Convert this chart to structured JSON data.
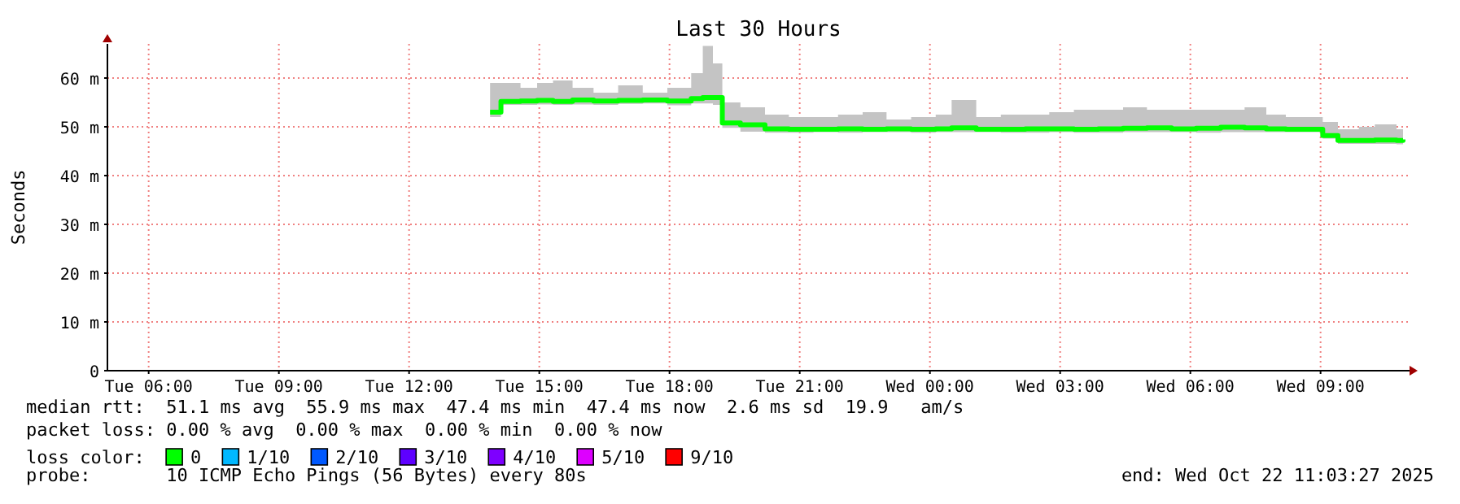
{
  "chart_data": {
    "type": "step",
    "title": "Last 30 Hours",
    "ylabel": "Seconds",
    "legend_title": "loss color:",
    "legend": "bottom",
    "grid": true,
    "xlim": [
      "2025-10-21T05:03",
      "2025-10-22T11:03"
    ],
    "xticks": [
      {
        "value": "2025-10-21T06:00",
        "label": "Tue 06:00"
      },
      {
        "value": "2025-10-21T09:00",
        "label": "Tue 09:00"
      },
      {
        "value": "2025-10-21T12:00",
        "label": "Tue 12:00"
      },
      {
        "value": "2025-10-21T15:00",
        "label": "Tue 15:00"
      },
      {
        "value": "2025-10-21T18:00",
        "label": "Tue 18:00"
      },
      {
        "value": "2025-10-21T21:00",
        "label": "Tue 21:00"
      },
      {
        "value": "2025-10-22T00:00",
        "label": "Wed 00:00"
      },
      {
        "value": "2025-10-22T03:00",
        "label": "Wed 03:00"
      },
      {
        "value": "2025-10-22T06:00",
        "label": "Wed 06:00"
      },
      {
        "value": "2025-10-22T09:00",
        "label": "Wed 09:00"
      }
    ],
    "ylim": [
      0,
      67
    ],
    "yticks": [
      0,
      {
        "value": 10,
        "label": "10 m"
      },
      {
        "value": 20,
        "label": "20 m"
      },
      {
        "value": 30,
        "label": "30 m"
      },
      {
        "value": 40,
        "label": "40 m"
      },
      {
        "value": 50,
        "label": "50 m"
      },
      {
        "value": 60,
        "label": "60 m"
      }
    ],
    "x": [
      "2025-10-21T13:52",
      "2025-10-21T14:07",
      "2025-10-21T14:34",
      "2025-10-21T14:57",
      "2025-10-21T15:19",
      "2025-10-21T15:46",
      "2025-10-21T16:15",
      "2025-10-21T16:49",
      "2025-10-21T17:23",
      "2025-10-21T17:57",
      "2025-10-21T18:30",
      "2025-10-21T18:46",
      "2025-10-21T19:00",
      "2025-10-21T19:13",
      "2025-10-21T19:38",
      "2025-10-21T20:12",
      "2025-10-21T20:45",
      "2025-10-21T21:19",
      "2025-10-21T21:53",
      "2025-10-21T22:27",
      "2025-10-21T23:00",
      "2025-10-21T23:34",
      "2025-10-22T00:08",
      "2025-10-22T00:30",
      "2025-10-22T01:04",
      "2025-10-22T01:38",
      "2025-10-22T02:12",
      "2025-10-22T02:45",
      "2025-10-22T03:19",
      "2025-10-22T03:53",
      "2025-10-22T04:27",
      "2025-10-22T05:00",
      "2025-10-22T05:34",
      "2025-10-22T06:08",
      "2025-10-22T06:42",
      "2025-10-22T07:15",
      "2025-10-22T07:45",
      "2025-10-22T08:12",
      "2025-10-22T08:43",
      "2025-10-22T09:03",
      "2025-10-22T09:24",
      "2025-10-22T09:53",
      "2025-10-22T10:15",
      "2025-10-22T10:45",
      "2025-10-22T10:54"
    ],
    "series": [
      {
        "name": "0",
        "color": "#00ff00",
        "values": [
          53,
          55.2,
          55.3,
          55.4,
          55.2,
          55.5,
          55.3,
          55.4,
          55.5,
          55.3,
          55.8,
          56,
          56,
          50.8,
          50.4,
          49.6,
          49.5,
          49.5,
          49.6,
          49.5,
          49.6,
          49.5,
          49.6,
          49.8,
          49.5,
          49.5,
          49.6,
          49.6,
          49.5,
          49.6,
          49.7,
          49.8,
          49.6,
          49.7,
          49.9,
          49.8,
          49.6,
          49.5,
          49.5,
          48.2,
          47.2,
          47.2,
          47.3,
          47.2,
          47.4
        ],
        "lower": [
          52,
          54.5,
          54.5,
          54.6,
          54.5,
          54.6,
          54.5,
          54.7,
          54.8,
          54.4,
          54.8,
          54.8,
          54.5,
          49.8,
          49,
          48.8,
          48.8,
          48.9,
          48.8,
          48.9,
          48.9,
          48.8,
          48.9,
          48.9,
          48.9,
          48.8,
          48.8,
          48.9,
          48.8,
          48.8,
          48.9,
          48.9,
          48.9,
          48.8,
          48.9,
          48.9,
          48.9,
          48.9,
          48.9,
          47.6,
          46.5,
          46.5,
          46.5,
          46.4,
          46.5
        ],
        "upper": [
          59,
          59,
          58,
          59,
          59.5,
          58,
          57,
          58.5,
          57,
          58,
          61,
          66.6,
          63,
          55,
          54,
          52.5,
          52,
          52,
          52.5,
          53,
          51.5,
          52,
          52.5,
          55.5,
          52,
          52.5,
          52.5,
          53,
          53.5,
          53.5,
          54,
          53.5,
          53.5,
          53.5,
          53.5,
          54,
          52.5,
          52,
          52,
          51,
          49.5,
          50,
          50.5,
          49.5,
          49.5
        ]
      },
      {
        "name": "1/10",
        "color": "#00b8ff",
        "values": [
          null,
          null,
          null,
          null,
          null,
          null,
          null,
          null,
          null,
          null,
          null,
          null,
          null,
          null,
          null,
          null,
          null,
          null,
          null,
          null,
          null,
          null,
          null,
          null,
          null,
          null,
          null,
          null,
          null,
          null,
          null,
          null,
          null,
          null,
          null,
          null,
          null,
          null,
          null,
          null,
          null,
          null,
          null,
          null,
          null
        ]
      },
      {
        "name": "2/10",
        "color": "#0059ff",
        "values": [
          null,
          null,
          null,
          null,
          null,
          null,
          null,
          null,
          null,
          null,
          null,
          null,
          null,
          null,
          null,
          null,
          null,
          null,
          null,
          null,
          null,
          null,
          null,
          null,
          null,
          null,
          null,
          null,
          null,
          null,
          null,
          null,
          null,
          null,
          null,
          null,
          null,
          null,
          null,
          null,
          null,
          null,
          null,
          null,
          null
        ]
      },
      {
        "name": "3/10",
        "color": "#5e00ff",
        "values": [
          null,
          null,
          null,
          null,
          null,
          null,
          null,
          null,
          null,
          null,
          null,
          null,
          null,
          null,
          null,
          null,
          null,
          null,
          null,
          null,
          null,
          null,
          null,
          null,
          null,
          null,
          null,
          null,
          null,
          null,
          null,
          null,
          null,
          null,
          null,
          null,
          null,
          null,
          null,
          null,
          null,
          null,
          null,
          null,
          null
        ]
      },
      {
        "name": "4/10",
        "color": "#7e00ff",
        "values": [
          null,
          null,
          null,
          null,
          null,
          null,
          null,
          null,
          null,
          null,
          null,
          null,
          null,
          null,
          null,
          null,
          null,
          null,
          null,
          null,
          null,
          null,
          null,
          null,
          null,
          null,
          null,
          null,
          null,
          null,
          null,
          null,
          null,
          null,
          null,
          null,
          null,
          null,
          null,
          null,
          null,
          null,
          null,
          null,
          null
        ]
      },
      {
        "name": "5/10",
        "color": "#dd00ff",
        "values": [
          null,
          null,
          null,
          null,
          null,
          null,
          null,
          null,
          null,
          null,
          null,
          null,
          null,
          null,
          null,
          null,
          null,
          null,
          null,
          null,
          null,
          null,
          null,
          null,
          null,
          null,
          null,
          null,
          null,
          null,
          null,
          null,
          null,
          null,
          null,
          null,
          null,
          null,
          null,
          null,
          null,
          null,
          null,
          null,
          null
        ]
      },
      {
        "name": "9/10",
        "color": "#ff0000",
        "values": [
          null,
          null,
          null,
          null,
          null,
          null,
          null,
          null,
          null,
          null,
          null,
          null,
          null,
          null,
          null,
          null,
          null,
          null,
          null,
          null,
          null,
          null,
          null,
          null,
          null,
          null,
          null,
          null,
          null,
          null,
          null,
          null,
          null,
          null,
          null,
          null,
          null,
          null,
          null,
          null,
          null,
          null,
          null,
          null,
          null
        ]
      }
    ],
    "annotations": [
      "median rtt:  51.1 ms avg  55.9 ms max  47.4 ms min  47.4 ms now  2.6 ms sd  19.9   am/s",
      "packet loss: 0.00 % avg  0.00 % max  0.00 % min  0.00 % now",
      "probe:       10 ICMP Echo Pings (56 Bytes) every 80s",
      "end: Wed Oct 22 11:03:27 2025"
    ]
  }
}
